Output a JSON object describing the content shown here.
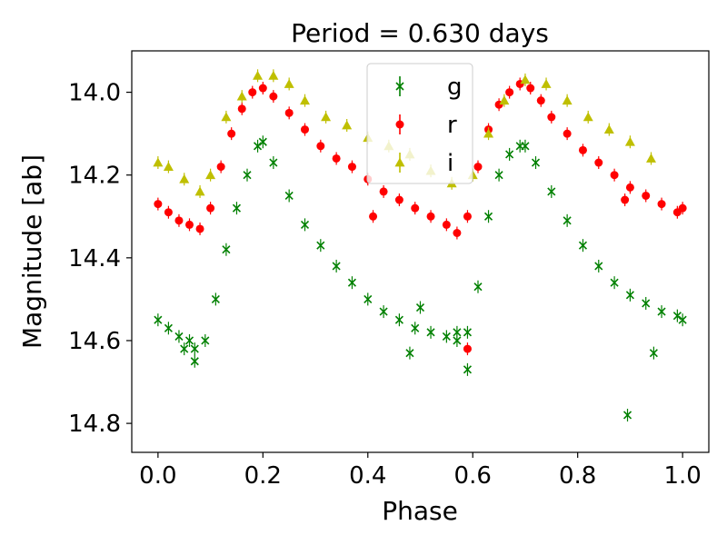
{
  "chart_data": {
    "type": "scatter",
    "title": "Period = 0.630 days",
    "xlabel": "Phase",
    "ylabel": "Magnitude [ab]",
    "xlim": [
      -0.05,
      1.05
    ],
    "ylim": [
      14.87,
      13.9
    ],
    "y_inverted": true,
    "xticks": [
      0.0,
      0.2,
      0.4,
      0.6,
      0.8,
      1.0
    ],
    "xtick_labels": [
      "0.0",
      "0.2",
      "0.4",
      "0.6",
      "0.8",
      "1.0"
    ],
    "yticks": [
      14.0,
      14.2,
      14.4,
      14.6,
      14.8
    ],
    "ytick_labels": [
      "14.0",
      "14.2",
      "14.4",
      "14.6",
      "14.8"
    ],
    "grid": false,
    "legend_position": "top-center",
    "series": [
      {
        "name": "g",
        "marker": "x",
        "color": "#008000",
        "x": [
          0.0,
          0.02,
          0.04,
          0.06,
          0.07,
          0.09,
          0.11,
          0.13,
          0.15,
          0.17,
          0.19,
          0.2,
          0.22,
          0.25,
          0.28,
          0.31,
          0.34,
          0.37,
          0.4,
          0.43,
          0.46,
          0.49,
          0.52,
          0.55,
          0.57,
          0.59,
          0.61,
          0.63,
          0.65,
          0.67,
          0.69,
          0.7,
          0.72,
          0.75,
          0.78,
          0.81,
          0.84,
          0.87,
          0.9,
          0.93,
          0.96,
          0.99,
          1.0,
          0.05,
          0.07,
          0.48,
          0.5,
          0.57,
          0.59,
          0.895,
          0.945
        ],
        "y": [
          14.55,
          14.57,
          14.59,
          14.6,
          14.62,
          14.6,
          14.5,
          14.38,
          14.28,
          14.2,
          14.13,
          14.12,
          14.17,
          14.25,
          14.32,
          14.37,
          14.42,
          14.46,
          14.5,
          14.53,
          14.55,
          14.57,
          14.58,
          14.59,
          14.6,
          14.58,
          14.47,
          14.3,
          14.2,
          14.15,
          14.13,
          14.13,
          14.17,
          14.24,
          14.31,
          14.37,
          14.42,
          14.46,
          14.49,
          14.51,
          14.53,
          14.54,
          14.55,
          14.62,
          14.65,
          14.63,
          14.52,
          14.58,
          14.67,
          14.78,
          14.63
        ]
      },
      {
        "name": "r",
        "marker": "o",
        "color": "#ff0000",
        "x": [
          0.0,
          0.02,
          0.04,
          0.06,
          0.08,
          0.1,
          0.12,
          0.14,
          0.16,
          0.18,
          0.2,
          0.22,
          0.25,
          0.28,
          0.31,
          0.34,
          0.37,
          0.4,
          0.43,
          0.46,
          0.49,
          0.52,
          0.55,
          0.57,
          0.59,
          0.61,
          0.63,
          0.65,
          0.67,
          0.69,
          0.71,
          0.73,
          0.75,
          0.78,
          0.81,
          0.84,
          0.87,
          0.9,
          0.93,
          0.96,
          0.99,
          1.0,
          0.59,
          0.89,
          0.41
        ],
        "y": [
          14.27,
          14.29,
          14.31,
          14.32,
          14.33,
          14.28,
          14.18,
          14.1,
          14.04,
          14.0,
          13.99,
          14.01,
          14.05,
          14.09,
          14.13,
          14.16,
          14.18,
          14.21,
          14.24,
          14.26,
          14.28,
          14.3,
          14.32,
          14.34,
          14.3,
          14.18,
          14.09,
          14.03,
          14.0,
          13.98,
          13.99,
          14.02,
          14.06,
          14.1,
          14.14,
          14.17,
          14.2,
          14.23,
          14.25,
          14.27,
          14.29,
          14.28,
          14.62,
          14.26,
          14.3
        ]
      },
      {
        "name": "i",
        "marker": "^",
        "color": "#bfbf00",
        "x": [
          0.0,
          0.02,
          0.05,
          0.08,
          0.1,
          0.13,
          0.16,
          0.19,
          0.22,
          0.25,
          0.28,
          0.32,
          0.36,
          0.4,
          0.44,
          0.48,
          0.52,
          0.56,
          0.6,
          0.63,
          0.66,
          0.7,
          0.74,
          0.78,
          0.82,
          0.86,
          0.9,
          0.94
        ],
        "y": [
          14.17,
          14.18,
          14.21,
          14.24,
          14.2,
          14.06,
          14.01,
          13.96,
          13.96,
          13.98,
          14.02,
          14.06,
          14.08,
          14.11,
          14.13,
          14.15,
          14.19,
          14.22,
          14.2,
          14.1,
          14.02,
          13.97,
          13.98,
          14.02,
          14.06,
          14.09,
          14.12,
          14.16
        ]
      }
    ]
  }
}
